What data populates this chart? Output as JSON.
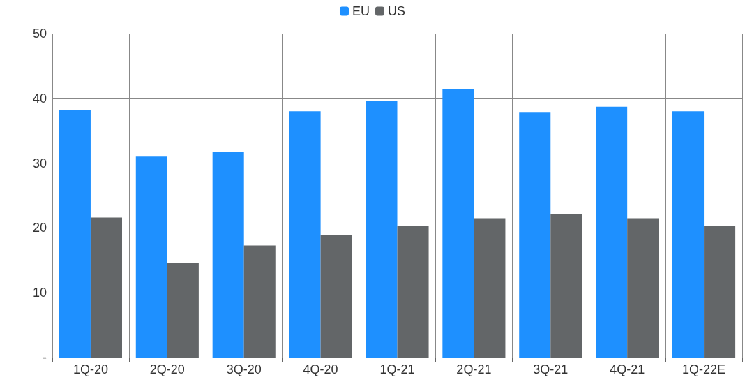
{
  "chart_data": {
    "type": "bar",
    "categories": [
      "1Q-20",
      "2Q-20",
      "3Q-20",
      "4Q-20",
      "1Q-21",
      "2Q-21",
      "3Q-21",
      "4Q-21",
      "1Q-22E"
    ],
    "series": [
      {
        "name": "EU",
        "color": "#1e90ff",
        "values": [
          38.2,
          31.0,
          31.8,
          38.0,
          39.6,
          41.5,
          37.8,
          38.7,
          38.0
        ]
      },
      {
        "name": "US",
        "color": "#636668",
        "values": [
          21.6,
          14.6,
          17.3,
          18.9,
          20.3,
          21.5,
          22.2,
          21.5,
          20.3
        ]
      }
    ],
    "ylim": [
      0,
      50
    ],
    "yticks": [
      {
        "value": 0,
        "label": "-"
      },
      10,
      20,
      30,
      40,
      50
    ],
    "grid": true,
    "legend": "top"
  }
}
